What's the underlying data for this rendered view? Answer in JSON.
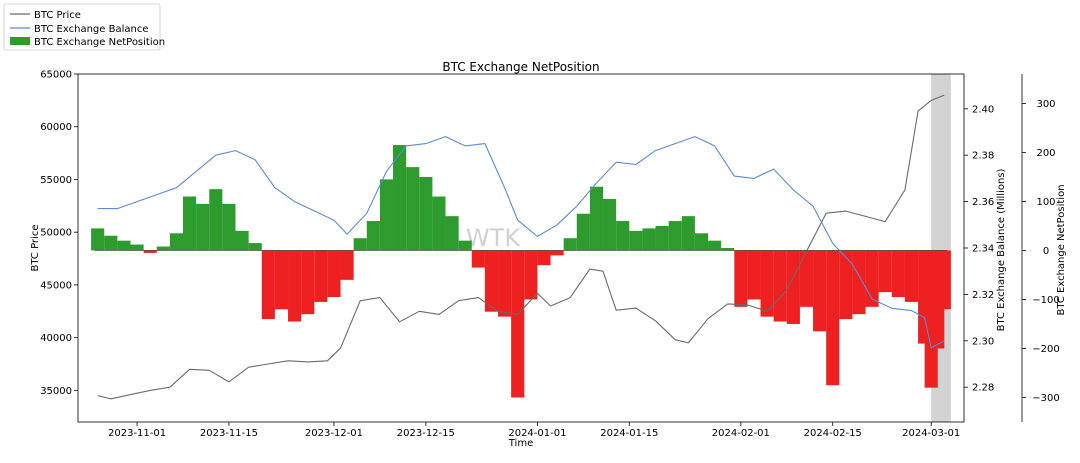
{
  "chart_data": {
    "type": "line",
    "title": "BTC Exchange NetPosition",
    "xlabel": "Time",
    "ylabel": "BTC Price",
    "ylabel_right": "BTC Exchange Balance (Millions)",
    "ylabel_right2": "BTC Exchange NetPosition",
    "grid": false,
    "legend_position": "top-left",
    "watermark": "WTK",
    "x_ticks": [
      "2023-11-01",
      "2023-11-15",
      "2023-12-01",
      "2023-12-15",
      "2024-01-01",
      "2024-01-15",
      "2024-02-01",
      "2024-02-15",
      "2024-03-01"
    ],
    "xlim": [
      "2023-10-23",
      "2024-03-06"
    ],
    "y_left": {
      "lim": [
        32000,
        65000
      ],
      "ticks": [
        35000,
        40000,
        45000,
        50000,
        55000,
        60000,
        65000
      ]
    },
    "y_right": {
      "lim": [
        2.265,
        2.415
      ],
      "ticks": [
        "2.28",
        "2.30",
        "2.32",
        "2.34",
        "2.36",
        "2.38",
        "2.40"
      ]
    },
    "y_right2": {
      "lim": [
        -350,
        360
      ],
      "ticks": [
        -300,
        -200,
        -100,
        0,
        100,
        200,
        300
      ]
    },
    "highlight_range": [
      "2024-03-01",
      "2024-03-04"
    ],
    "colors": {
      "price": "#6b6b6b",
      "balance": "#5b8bd6",
      "positive": "#2e9b2e",
      "negative": "#ee2020",
      "highlight": "#d3d3d3"
    },
    "series": [
      {
        "name": "BTC Price",
        "axis": "left",
        "style": "line",
        "x": [
          "2023-10-26",
          "2023-10-28",
          "2023-10-31",
          "2023-11-03",
          "2023-11-06",
          "2023-11-09",
          "2023-11-12",
          "2023-11-15",
          "2023-11-18",
          "2023-11-21",
          "2023-11-24",
          "2023-11-27",
          "2023-11-30",
          "2023-12-02",
          "2023-12-05",
          "2023-12-08",
          "2023-12-11",
          "2023-12-14",
          "2023-12-17",
          "2023-12-20",
          "2023-12-23",
          "2023-12-26",
          "2023-12-29",
          "2024-01-01",
          "2024-01-03",
          "2024-01-06",
          "2024-01-09",
          "2024-01-11",
          "2024-01-13",
          "2024-01-16",
          "2024-01-19",
          "2024-01-22",
          "2024-01-24",
          "2024-01-27",
          "2024-01-30",
          "2024-02-02",
          "2024-02-05",
          "2024-02-08",
          "2024-02-11",
          "2024-02-14",
          "2024-02-17",
          "2024-02-20",
          "2024-02-23",
          "2024-02-26",
          "2024-02-28",
          "2024-03-01",
          "2024-03-03"
        ],
        "values": [
          34500,
          34200,
          34600,
          35000,
          35300,
          37000,
          36900,
          35800,
          37200,
          37500,
          37800,
          37700,
          37800,
          39000,
          43500,
          43800,
          41500,
          42500,
          42200,
          43500,
          43800,
          42500,
          42200,
          44200,
          43000,
          43800,
          46500,
          46300,
          42600,
          42800,
          41600,
          39800,
          39500,
          41800,
          43200,
          43100,
          42500,
          44500,
          48200,
          51800,
          52000,
          51500,
          51000,
          54000,
          61500,
          62500,
          63000
        ]
      },
      {
        "name": "BTC Exchange Balance",
        "axis": "right",
        "style": "line",
        "x": [
          "2023-10-26",
          "2023-10-29",
          "2023-11-01",
          "2023-11-04",
          "2023-11-07",
          "2023-11-10",
          "2023-11-13",
          "2023-11-16",
          "2023-11-19",
          "2023-11-22",
          "2023-11-25",
          "2023-11-28",
          "2023-12-01",
          "2023-12-03",
          "2023-12-06",
          "2023-12-09",
          "2023-12-12",
          "2023-12-15",
          "2023-12-18",
          "2023-12-21",
          "2023-12-24",
          "2023-12-27",
          "2023-12-29",
          "2024-01-01",
          "2024-01-04",
          "2024-01-07",
          "2024-01-10",
          "2024-01-13",
          "2024-01-16",
          "2024-01-19",
          "2024-01-22",
          "2024-01-25",
          "2024-01-28",
          "2024-01-31",
          "2024-02-03",
          "2024-02-06",
          "2024-02-09",
          "2024-02-12",
          "2024-02-15",
          "2024-02-18",
          "2024-02-21",
          "2024-02-24",
          "2024-02-27",
          "2024-02-29",
          "2024-03-01",
          "2024-03-03"
        ],
        "values": [
          2.357,
          2.357,
          2.36,
          2.363,
          2.366,
          2.373,
          2.38,
          2.382,
          2.378,
          2.366,
          2.36,
          2.356,
          2.352,
          2.346,
          2.355,
          2.373,
          2.384,
          2.385,
          2.388,
          2.384,
          2.385,
          2.366,
          2.352,
          2.345,
          2.35,
          2.358,
          2.368,
          2.377,
          2.376,
          2.382,
          2.385,
          2.388,
          2.384,
          2.371,
          2.37,
          2.374,
          2.365,
          2.358,
          2.342,
          2.333,
          2.318,
          2.314,
          2.313,
          2.31,
          2.297,
          2.3
        ]
      },
      {
        "name": "BTC Exchange NetPosition",
        "axis": "right2",
        "style": "bar",
        "x": [
          "2023-10-26",
          "2023-10-28",
          "2023-10-30",
          "2023-11-01",
          "2023-11-03",
          "2023-11-05",
          "2023-11-07",
          "2023-11-09",
          "2023-11-11",
          "2023-11-13",
          "2023-11-15",
          "2023-11-17",
          "2023-11-19",
          "2023-11-21",
          "2023-11-23",
          "2023-11-25",
          "2023-11-27",
          "2023-11-29",
          "2023-12-01",
          "2023-12-03",
          "2023-12-05",
          "2023-12-07",
          "2023-12-09",
          "2023-12-11",
          "2023-12-13",
          "2023-12-15",
          "2023-12-17",
          "2023-12-19",
          "2023-12-21",
          "2023-12-23",
          "2023-12-25",
          "2023-12-27",
          "2023-12-29",
          "2023-12-31",
          "2024-01-02",
          "2024-01-04",
          "2024-01-06",
          "2024-01-08",
          "2024-01-10",
          "2024-01-12",
          "2024-01-14",
          "2024-01-16",
          "2024-01-18",
          "2024-01-20",
          "2024-01-22",
          "2024-01-24",
          "2024-01-26",
          "2024-01-28",
          "2024-01-30",
          "2024-02-01",
          "2024-02-03",
          "2024-02-05",
          "2024-02-07",
          "2024-02-09",
          "2024-02-11",
          "2024-02-13",
          "2024-02-15",
          "2024-02-17",
          "2024-02-19",
          "2024-02-21",
          "2024-02-23",
          "2024-02-25",
          "2024-02-27",
          "2024-02-29",
          "2024-03-01",
          "2024-03-02",
          "2024-03-03"
        ],
        "values": [
          45,
          30,
          20,
          12,
          -5,
          8,
          35,
          110,
          95,
          125,
          95,
          40,
          15,
          -140,
          -120,
          -145,
          -130,
          -105,
          -95,
          -60,
          25,
          60,
          145,
          215,
          170,
          150,
          110,
          70,
          20,
          -35,
          -125,
          -135,
          -300,
          -100,
          -30,
          -10,
          25,
          75,
          130,
          105,
          60,
          40,
          45,
          50,
          60,
          70,
          35,
          20,
          5,
          -115,
          -100,
          -135,
          -145,
          -150,
          -115,
          -165,
          -275,
          -140,
          -130,
          -115,
          -85,
          -95,
          -105,
          -190,
          -280,
          -200,
          -120
        ]
      }
    ]
  }
}
